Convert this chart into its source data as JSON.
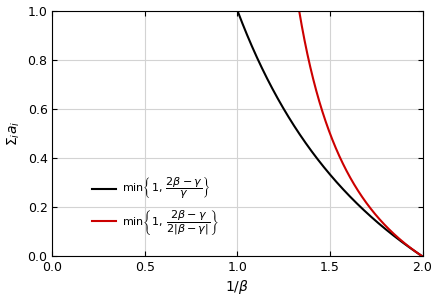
{
  "xlim": [
    0,
    2
  ],
  "ylim": [
    0,
    1
  ],
  "xticks": [
    0,
    0.5,
    1,
    1.5,
    2
  ],
  "yticks": [
    0,
    0.2,
    0.4,
    0.6,
    0.8,
    1.0
  ],
  "black_color": "#000000",
  "red_color": "#cc0000",
  "linewidth": 1.5,
  "grid_color": "#d3d3d3",
  "figsize": [
    4.38,
    3.02
  ],
  "dpi": 100
}
